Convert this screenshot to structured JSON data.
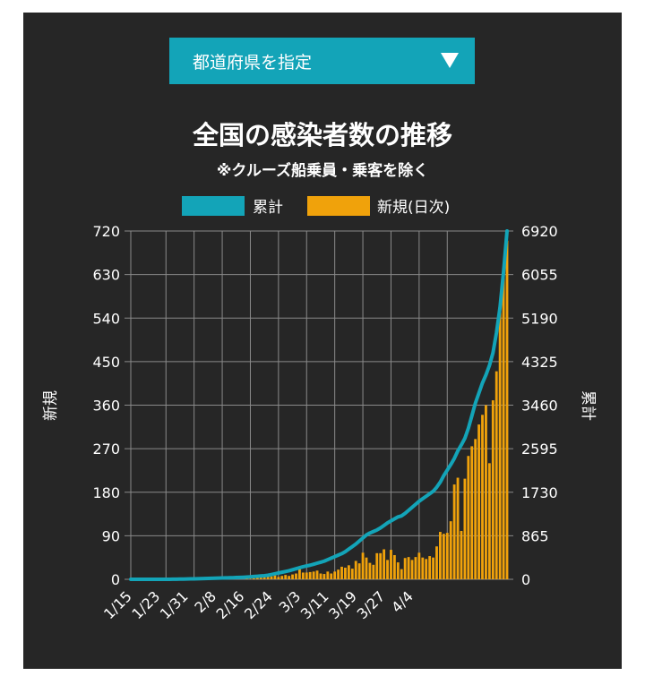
{
  "selector": {
    "label": "都道府県を指定"
  },
  "chart_data": {
    "type": "bar",
    "title": "全国の感染者数の推移",
    "subtitle": "※クルーズ船乗員・乗客を除く",
    "legend": [
      {
        "name": "累計",
        "color": "#13a4b8"
      },
      {
        "name": "新規(日次)",
        "color": "#f0a20b"
      }
    ],
    "legend_position": "top",
    "grid": true,
    "y_left_label": "新規",
    "y_right_label": "累計",
    "y_left_lim": [
      0,
      720
    ],
    "y_right_lim": [
      0,
      6920
    ],
    "y_left_ticks": [
      "720",
      "630",
      "540",
      "450",
      "360",
      "270",
      "180",
      "90",
      "0"
    ],
    "y_right_ticks": [
      "6920",
      "6055",
      "5190",
      "4325",
      "3460",
      "2595",
      "1730",
      "865",
      "0"
    ],
    "x_tick_labels": [
      "1/15",
      "1/23",
      "1/31",
      "2/8",
      "2/16",
      "2/24",
      "3/3",
      "3/11",
      "3/19",
      "3/27",
      "4/4"
    ],
    "start_date": "1/15",
    "series": [
      {
        "name": "新規(日次)",
        "type": "bar",
        "axis": "left",
        "color": "#f0a20b",
        "values": [
          0,
          0,
          0,
          0,
          0,
          0,
          0,
          0,
          0,
          0,
          0,
          0,
          0,
          0,
          0,
          0,
          0,
          0,
          0,
          0,
          0,
          0,
          0,
          0,
          0,
          0,
          0,
          0,
          0,
          0,
          0,
          0,
          0,
          1,
          1,
          2,
          3,
          4,
          5,
          6,
          6,
          8,
          5,
          7,
          9,
          7,
          10,
          12,
          22,
          14,
          14,
          15,
          16,
          18,
          12,
          11,
          16,
          12,
          16,
          20,
          26,
          24,
          29,
          22,
          38,
          33,
          55,
          45,
          34,
          30,
          54,
          54,
          62,
          40,
          61,
          50,
          35,
          21,
          44,
          46,
          40,
          46,
          55,
          45,
          42,
          48,
          45,
          68,
          98,
          94,
          96,
          120,
          196,
          210,
          100,
          208,
          255,
          275,
          290,
          320,
          340,
          360,
          240,
          370,
          430,
          560,
          640,
          700
        ]
      },
      {
        "name": "累計",
        "type": "line",
        "axis": "right",
        "color": "#13a4b8",
        "values": [
          0,
          0,
          0,
          0,
          0,
          0,
          0,
          0,
          0,
          0,
          0,
          1,
          2,
          3,
          4,
          5,
          7,
          8,
          10,
          12,
          14,
          16,
          18,
          20,
          22,
          24,
          26,
          28,
          30,
          32,
          35,
          38,
          41,
          45,
          50,
          55,
          60,
          66,
          72,
          80,
          95,
          110,
          125,
          140,
          155,
          170,
          190,
          210,
          230,
          250,
          265,
          280,
          300,
          320,
          340,
          360,
          390,
          420,
          450,
          480,
          510,
          550,
          600,
          650,
          700,
          760,
          820,
          880,
          920,
          950,
          980,
          1020,
          1070,
          1120,
          1160,
          1200,
          1240,
          1260,
          1310,
          1370,
          1430,
          1490,
          1550,
          1600,
          1650,
          1700,
          1750,
          1830,
          1930,
          2060,
          2170,
          2280,
          2400,
          2550,
          2670,
          2800,
          3000,
          3250,
          3500,
          3700,
          3900,
          4060,
          4250,
          4500,
          4900,
          5400,
          6100,
          6920
        ]
      }
    ]
  }
}
